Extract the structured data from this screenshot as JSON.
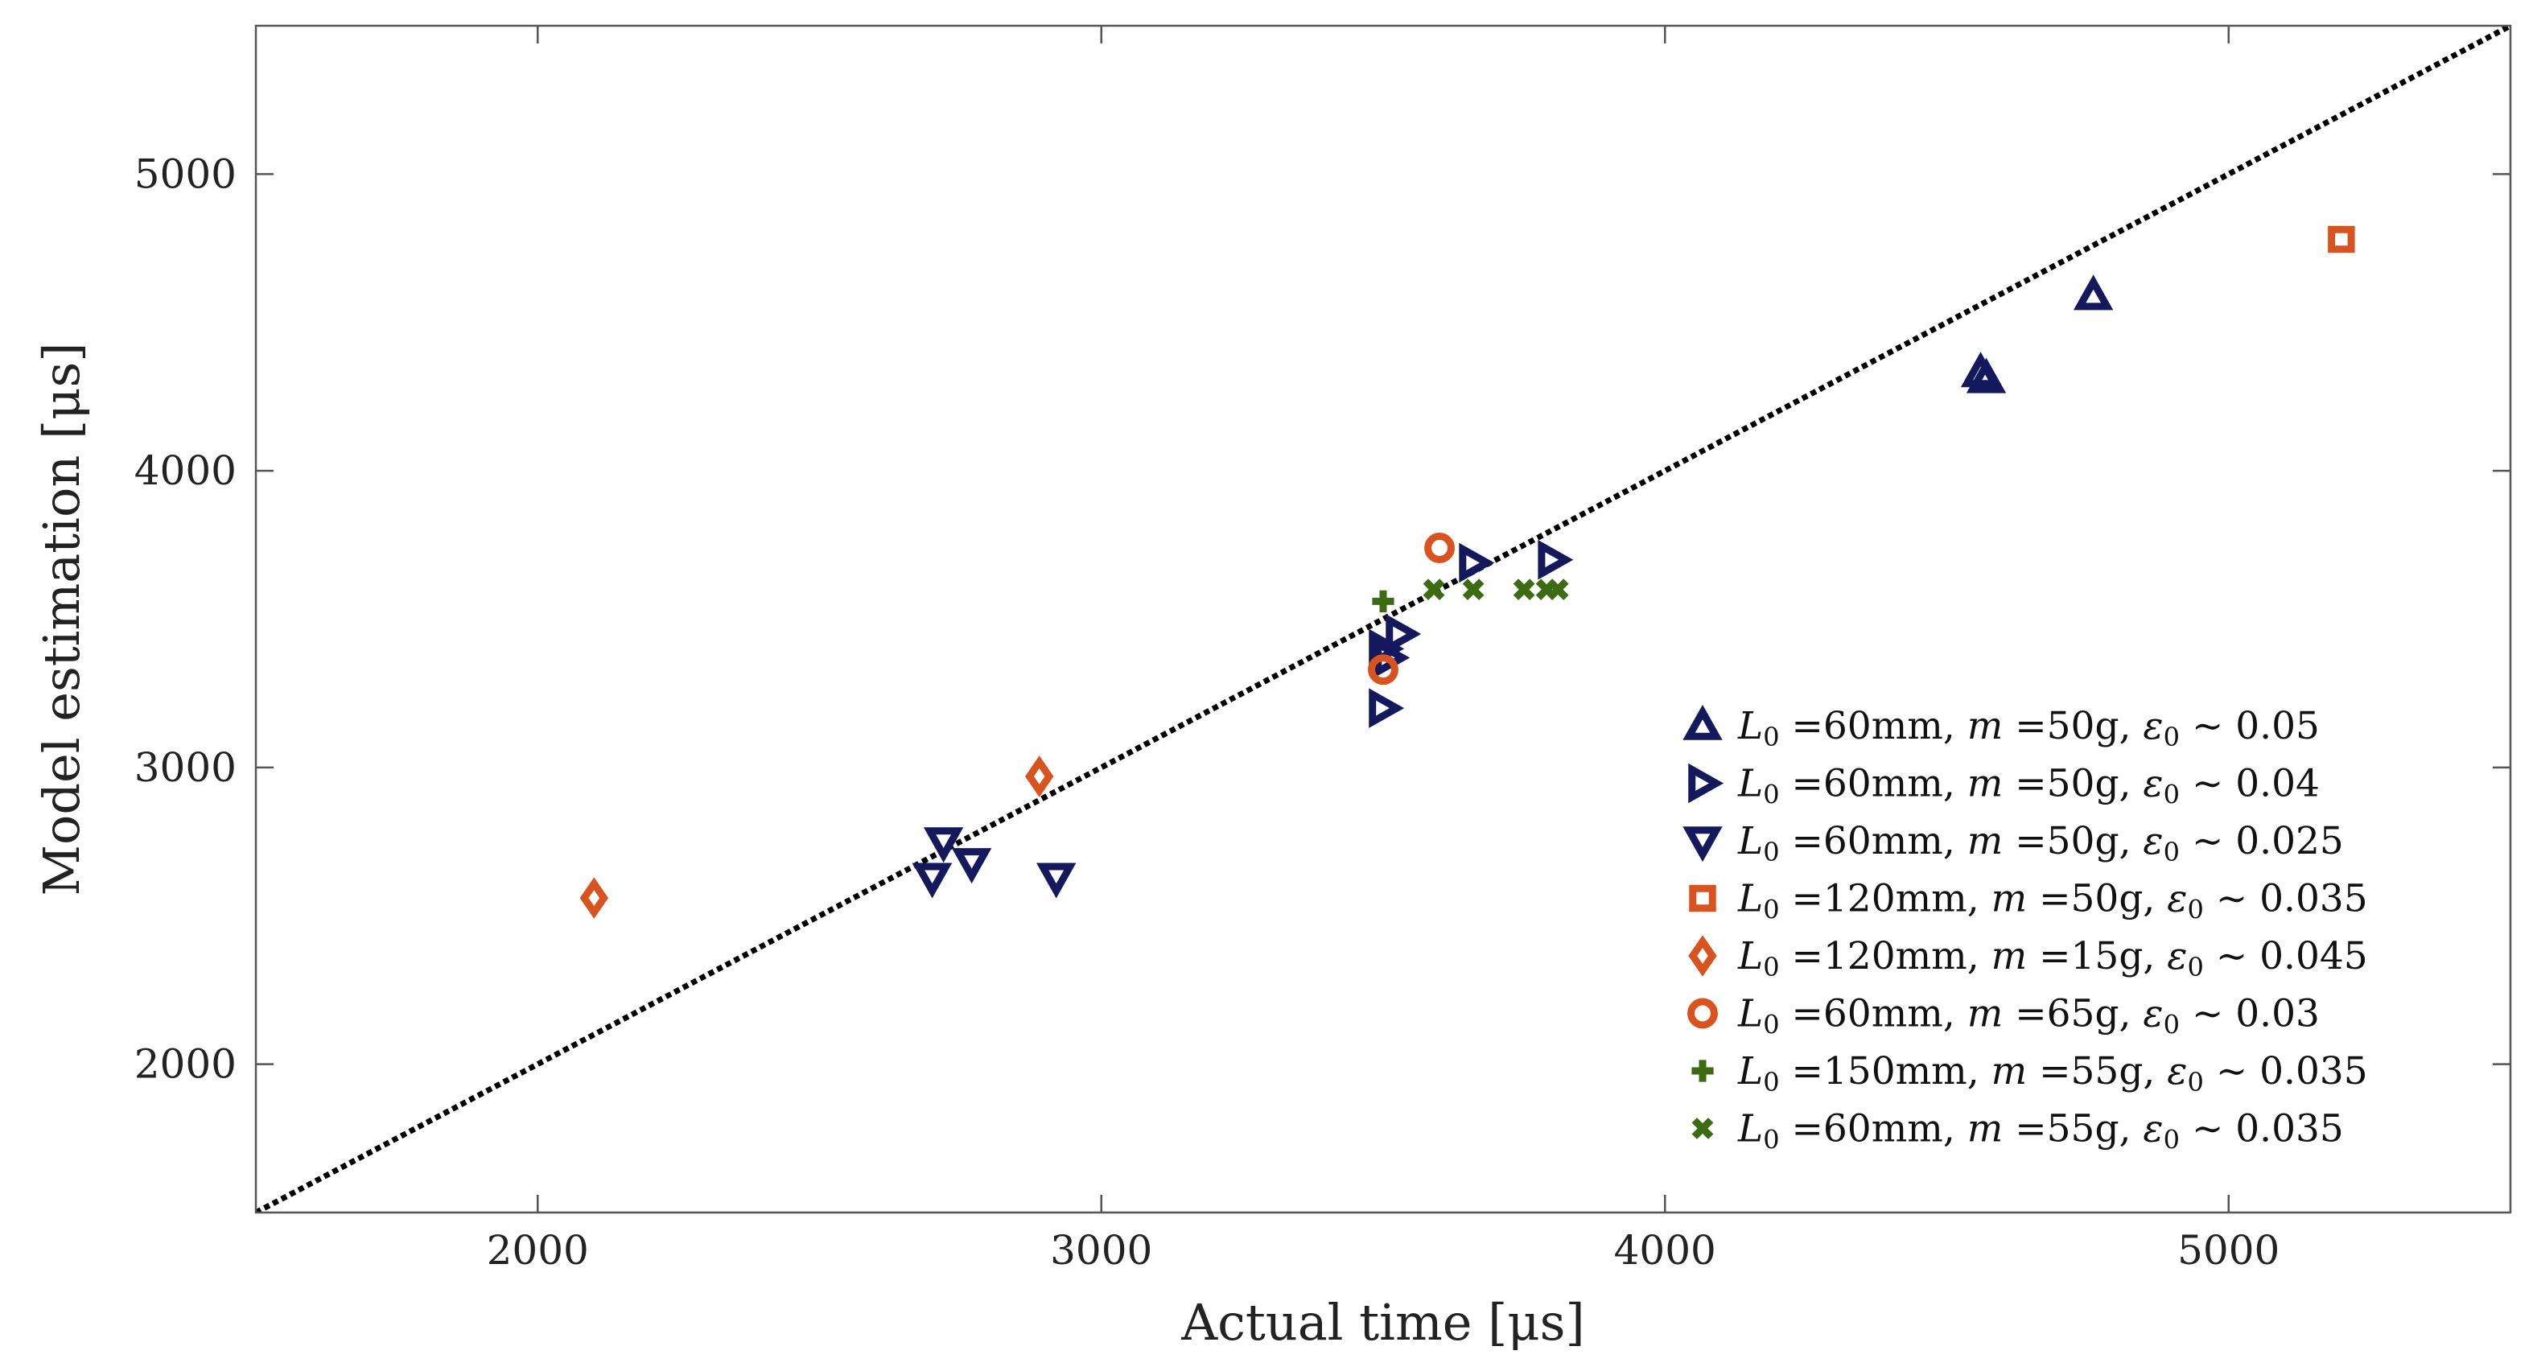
{
  "colors": {
    "navy": "#14195e",
    "orange": "#d9531e",
    "green": "#3d6b12",
    "diagonal": "#000000",
    "axis": "#555555"
  },
  "chart_data": {
    "type": "scatter",
    "title": "",
    "xlabel": "Actual time [μs]",
    "ylabel": "Model estimation [μs]",
    "xlim": [
      1500,
      5500
    ],
    "ylim": [
      1500,
      5500
    ],
    "xticks": [
      2000,
      3000,
      4000,
      5000
    ],
    "yticks": [
      2000,
      3000,
      4000,
      5000
    ],
    "xtick_labels": [
      "2000",
      "3000",
      "4000",
      "5000"
    ],
    "ytick_labels": [
      "2000",
      "3000",
      "4000",
      "5000"
    ],
    "grid": false,
    "legend_position": "bottom-right",
    "reference_line": {
      "name": "y = x",
      "style": "dotted",
      "color": "#000000"
    },
    "series": [
      {
        "name": "L0=60mm, m=50g, e0~0.05",
        "marker": "triangle-up",
        "color": "#14195e",
        "legend": {
          "l": "L",
          "sub": "0",
          "mid": " =60mm, ",
          "m": "m",
          "rest": " =50g, ",
          "eps": "ε",
          "end": " ∼ 0.05"
        },
        "points": [
          [
            4560,
            4330
          ],
          [
            4570,
            4310
          ],
          [
            4760,
            4590
          ]
        ]
      },
      {
        "name": "L0=60mm, m=50g, e0~0.04",
        "marker": "triangle-right",
        "color": "#14195e",
        "legend": {
          "l": "L",
          "sub": "0",
          "mid": " =60mm, ",
          "m": "m",
          "rest": " =50g, ",
          "eps": "ε",
          "end": " ∼ 0.04"
        },
        "points": [
          [
            3500,
            3200
          ],
          [
            3500,
            3400
          ],
          [
            3510,
            3370
          ],
          [
            3530,
            3450
          ],
          [
            3660,
            3690
          ],
          [
            3800,
            3700
          ]
        ]
      },
      {
        "name": "L0=60mm, m=50g, e0~0.025",
        "marker": "triangle-down",
        "color": "#14195e",
        "legend": {
          "l": "L",
          "sub": "0",
          "mid": " =60mm, ",
          "m": "m",
          "rest": " =50g, ",
          "eps": "ε",
          "end": " ∼ 0.025"
        },
        "points": [
          [
            2700,
            2630
          ],
          [
            2720,
            2750
          ],
          [
            2770,
            2680
          ],
          [
            2920,
            2630
          ]
        ]
      },
      {
        "name": "L0=120mm, m=50g, e0~0.035",
        "marker": "square",
        "color": "#d9531e",
        "legend": {
          "l": "L",
          "sub": "0",
          "mid": " =120mm, ",
          "m": "m",
          "rest": " =50g, ",
          "eps": "ε",
          "end": " ∼ 0.035"
        },
        "points": [
          [
            5200,
            4780
          ]
        ]
      },
      {
        "name": "L0=120mm, m=15g, e0~0.045",
        "marker": "diamond",
        "color": "#d9531e",
        "legend": {
          "l": "L",
          "sub": "0",
          "mid": " =120mm, ",
          "m": "m",
          "rest": " =15g, ",
          "eps": "ε",
          "end": " ∼ 0.045"
        },
        "points": [
          [
            2100,
            2560
          ],
          [
            2890,
            2970
          ]
        ]
      },
      {
        "name": "L0=60mm, m=65g, e0~0.03",
        "marker": "circle",
        "color": "#d9531e",
        "legend": {
          "l": "L",
          "sub": "0",
          "mid": " =60mm, ",
          "m": "m",
          "rest": " =65g, ",
          "eps": "ε",
          "end": " ∼ 0.03"
        },
        "points": [
          [
            3500,
            3330
          ],
          [
            3600,
            3740
          ]
        ]
      },
      {
        "name": "L0=150mm, m=55g, e0~0.035",
        "marker": "plus",
        "color": "#3d6b12",
        "legend": {
          "l": "L",
          "sub": "0",
          "mid": " =150mm, ",
          "m": "m",
          "rest": " =55g, ",
          "eps": "ε",
          "end": " ∼ 0.035"
        },
        "points": [
          [
            3500,
            3560
          ]
        ]
      },
      {
        "name": "L0=60mm, m=55g, e0~0.035",
        "marker": "cross",
        "color": "#3d6b12",
        "legend": {
          "l": "L",
          "sub": "0",
          "mid": " =60mm, ",
          "m": "m",
          "rest": " =55g, ",
          "eps": "ε",
          "end": " ∼ 0.035"
        },
        "points": [
          [
            3590,
            3600
          ],
          [
            3660,
            3600
          ],
          [
            3750,
            3600
          ],
          [
            3790,
            3600
          ],
          [
            3810,
            3600
          ]
        ]
      }
    ]
  }
}
